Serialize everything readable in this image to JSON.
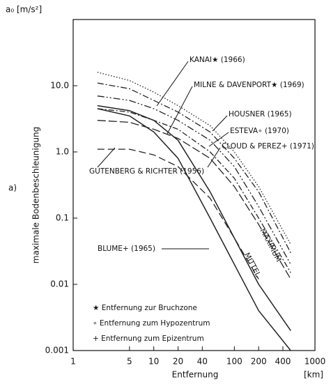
{
  "chart_data": {
    "type": "line",
    "y_unit": "a₀ [m/s²]",
    "panel_label": "a)",
    "ylabel": "maximale Bodenbeschleunigung",
    "xlabel": "Entfernung",
    "x_unit": "[km]",
    "xscale": "log",
    "yscale": "log",
    "xlim": [
      1,
      1000
    ],
    "ylim": [
      0.001,
      100
    ],
    "xticks": [
      1,
      5,
      10,
      20,
      40,
      100,
      200,
      400,
      1000
    ],
    "yticks": [
      {
        "value": 10,
        "label": "10.0"
      },
      {
        "value": 1,
        "label": "1.0"
      },
      0.1,
      0.01,
      0.001
    ],
    "x": [
      2,
      5,
      10,
      20,
      50,
      100,
      200,
      500
    ],
    "series": [
      {
        "name": "KANAI★ (1966)",
        "color": "#222222",
        "values": [
          16,
          12,
          8,
          5,
          2.5,
          1.0,
          0.3,
          0.04
        ]
      },
      {
        "name": "MILNE & DAVENPORT★ (1969)",
        "color": "#222222",
        "values": [
          11,
          9,
          6,
          4,
          2,
          0.8,
          0.25,
          0.03
        ]
      },
      {
        "name": "HOUSNER (1965)",
        "color": "#222222",
        "values": [
          7,
          6,
          4.5,
          3,
          1.5,
          0.6,
          0.15,
          0.02
        ]
      },
      {
        "name": "ESTEVA∘ (1970)",
        "color": "#222222",
        "values": [
          4.5,
          4,
          3,
          2.2,
          1,
          0.4,
          0.1,
          0.015
        ]
      },
      {
        "name": "CLOUD & PEREZ+ (1971)",
        "color": "#222222",
        "values": [
          3,
          2.8,
          2.2,
          1.6,
          0.8,
          0.3,
          0.08,
          0.012
        ]
      },
      {
        "name": "GUTENBERG & RICHTER (1956)",
        "color": "#222222",
        "values": [
          1.1,
          1.1,
          0.9,
          0.6,
          0.2,
          0.05,
          0.012,
          null
        ]
      },
      {
        "name": "MAXIMUM",
        "color": "#222222",
        "values": [
          5,
          4.2,
          3,
          1.5,
          0.25,
          0.05,
          0.01,
          0.002
        ]
      },
      {
        "name": "MITTEL",
        "color": "#222222",
        "values": [
          4.5,
          3.5,
          2,
          0.8,
          0.1,
          0.02,
          0.004,
          0.001
        ]
      }
    ],
    "annotation": "BLUME+ (1965)",
    "notes": [
      "★ Entfernung zur Bruchzone",
      "∘ Entfernung zum Hypozentrum",
      "+ Entfernung zum Epizentrum"
    ]
  }
}
